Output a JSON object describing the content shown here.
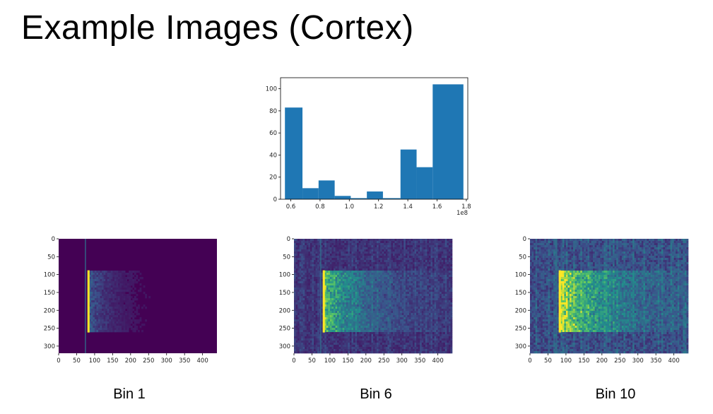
{
  "title": "Example Images (Cortex)",
  "chart_data": {
    "type": "bar",
    "title": "",
    "xlabel": "",
    "ylabel": "",
    "x_multiplier_label": "1e8",
    "bin_edges": [
      0.56,
      0.68,
      0.79,
      0.9,
      1.01,
      1.12,
      1.23,
      1.35,
      1.46,
      1.57,
      1.78
    ],
    "values": [
      83,
      10,
      17,
      3,
      1,
      7,
      1,
      45,
      29,
      104
    ],
    "xlim": [
      0.53,
      1.81
    ],
    "ylim": [
      0,
      110
    ],
    "xticks": [
      "0.6",
      "0.8",
      "1.0",
      "1.2",
      "1.4",
      "1.6",
      "1.8"
    ],
    "xtick_values": [
      0.6,
      0.8,
      1.0,
      1.2,
      1.4,
      1.6,
      1.8
    ],
    "yticks": [
      "0",
      "20",
      "40",
      "60",
      "80",
      "100"
    ],
    "ytick_values": [
      0,
      20,
      40,
      60,
      80,
      100
    ],
    "bar_color": "#1f77b4"
  },
  "spectrograms": [
    {
      "caption": "Bin 1",
      "intensity": 0.35,
      "noise": 0.05,
      "stripe_strength": 0.0
    },
    {
      "caption": "Bin 6",
      "intensity": 0.75,
      "noise": 0.35,
      "stripe_strength": 0.3
    },
    {
      "caption": "Bin 10",
      "intensity": 0.9,
      "noise": 0.55,
      "stripe_strength": 0.5
    }
  ],
  "spectro_axes": {
    "xticks": [
      "0",
      "50",
      "100",
      "150",
      "200",
      "250",
      "300",
      "350",
      "400"
    ],
    "xtick_values": [
      0,
      50,
      100,
      150,
      200,
      250,
      300,
      350,
      400
    ],
    "yticks": [
      "0",
      "50",
      "100",
      "150",
      "200",
      "250",
      "300"
    ],
    "ytick_values": [
      0,
      50,
      100,
      150,
      200,
      250,
      300
    ],
    "xlim": [
      0,
      440
    ],
    "ylim": [
      0,
      320
    ]
  },
  "colors": {
    "viridis_dark": "#440154",
    "viridis_bright": "#fde725"
  }
}
